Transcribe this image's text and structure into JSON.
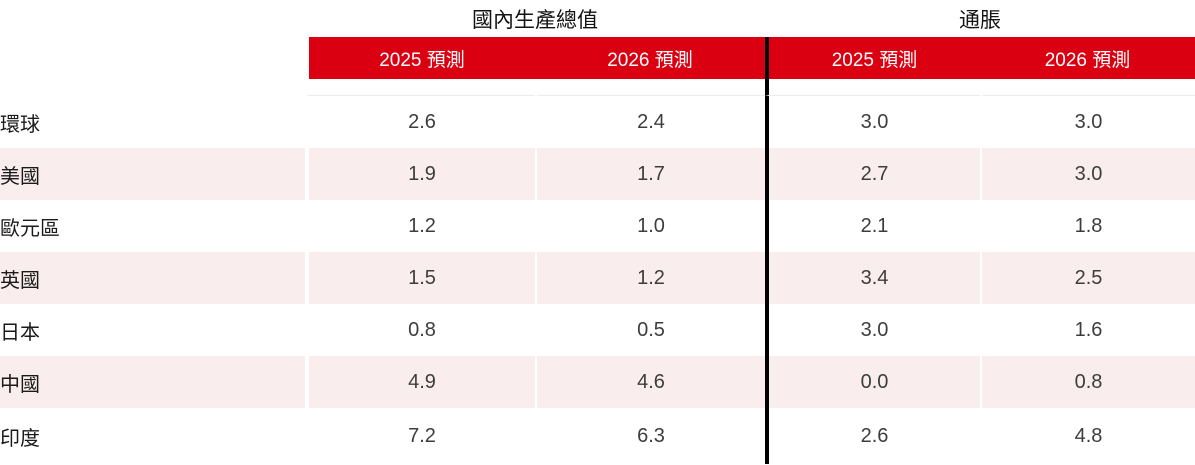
{
  "colors": {
    "header_red": "#db0011",
    "row_pink": "#faeded",
    "divider_black": "#000000"
  },
  "table": {
    "groups": {
      "gdp_title": "國內生產總值",
      "inflation_title": "通脹"
    },
    "col_headers": {
      "gdp_2025": "2025 預測",
      "gdp_2026": "2026 預測",
      "inf_2025": "2025 預測",
      "inf_2026": "2026 預測"
    },
    "rows": [
      {
        "label": "環球",
        "gdp_2025": "2.6",
        "gdp_2026": "2.4",
        "inf_2025": "3.0",
        "inf_2026": "3.0"
      },
      {
        "label": "美國",
        "gdp_2025": "1.9",
        "gdp_2026": "1.7",
        "inf_2025": "2.7",
        "inf_2026": "3.0"
      },
      {
        "label": "歐元區",
        "gdp_2025": "1.2",
        "gdp_2026": "1.0",
        "inf_2025": "2.1",
        "inf_2026": "1.8"
      },
      {
        "label": "英國",
        "gdp_2025": "1.5",
        "gdp_2026": "1.2",
        "inf_2025": "3.4",
        "inf_2026": "2.5"
      },
      {
        "label": "日本",
        "gdp_2025": "0.8",
        "gdp_2026": "0.5",
        "inf_2025": "3.0",
        "inf_2026": "1.6"
      },
      {
        "label": "中國",
        "gdp_2025": "4.9",
        "gdp_2026": "4.6",
        "inf_2025": "0.0",
        "inf_2026": "0.8"
      },
      {
        "label": "印度",
        "gdp_2025": "7.2",
        "gdp_2026": "6.3",
        "inf_2025": "2.6",
        "inf_2026": "4.8"
      }
    ]
  },
  "chart_data": {
    "type": "table",
    "title": "",
    "column_groups": [
      "國內生產總值",
      "通脹"
    ],
    "columns": [
      "國內生產總值 2025 預測",
      "國內生產總值 2026 預測",
      "通脹 2025 預測",
      "通脹 2026 預測"
    ],
    "row_labels": [
      "環球",
      "美國",
      "歐元區",
      "英國",
      "日本",
      "中國",
      "印度"
    ],
    "values": [
      [
        2.6,
        2.4,
        3.0,
        3.0
      ],
      [
        1.9,
        1.7,
        2.7,
        3.0
      ],
      [
        1.2,
        1.0,
        2.1,
        1.8
      ],
      [
        1.5,
        1.2,
        3.4,
        2.5
      ],
      [
        0.8,
        0.5,
        3.0,
        1.6
      ],
      [
        4.9,
        4.6,
        0.0,
        0.8
      ],
      [
        7.2,
        6.3,
        2.6,
        4.8
      ]
    ],
    "layout": "alternating pink row shading, red sub-header band, black vertical divider between column groups"
  }
}
